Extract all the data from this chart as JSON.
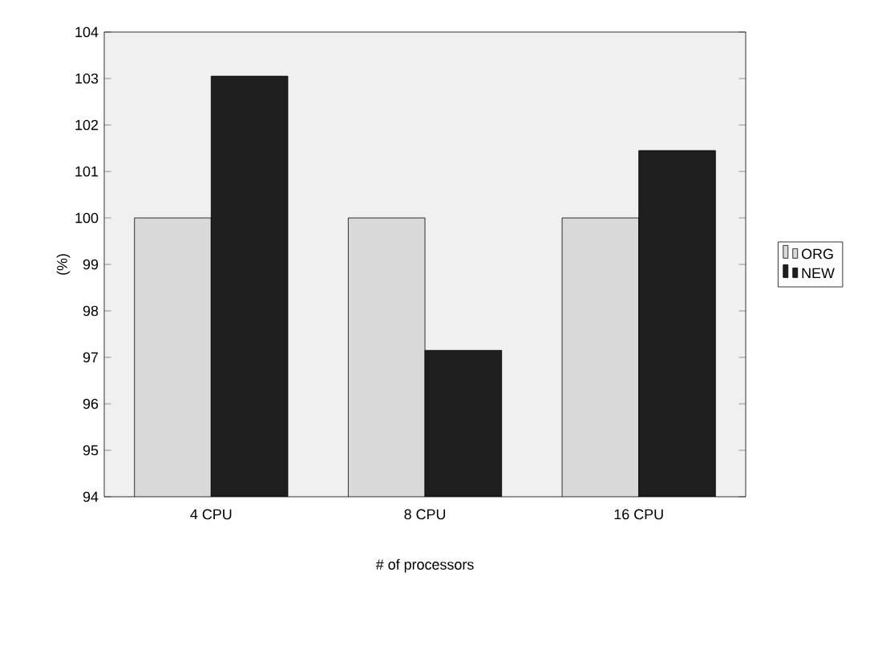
{
  "chart_data": {
    "type": "bar",
    "categories": [
      "4 CPU",
      "8 CPU",
      "16 CPU"
    ],
    "series": [
      {
        "name": "ORG",
        "color": "#d9d9d9",
        "values": [
          100,
          100,
          100
        ]
      },
      {
        "name": "NEW",
        "color": "#1e1e1e",
        "values": [
          103.05,
          97.15,
          101.45
        ]
      }
    ],
    "xlabel": "# of processors",
    "ylabel": "(%)",
    "ylim": [
      94,
      104
    ],
    "yticks": [
      94,
      95,
      96,
      97,
      98,
      99,
      100,
      101,
      102,
      103,
      104
    ],
    "legend": "right"
  }
}
